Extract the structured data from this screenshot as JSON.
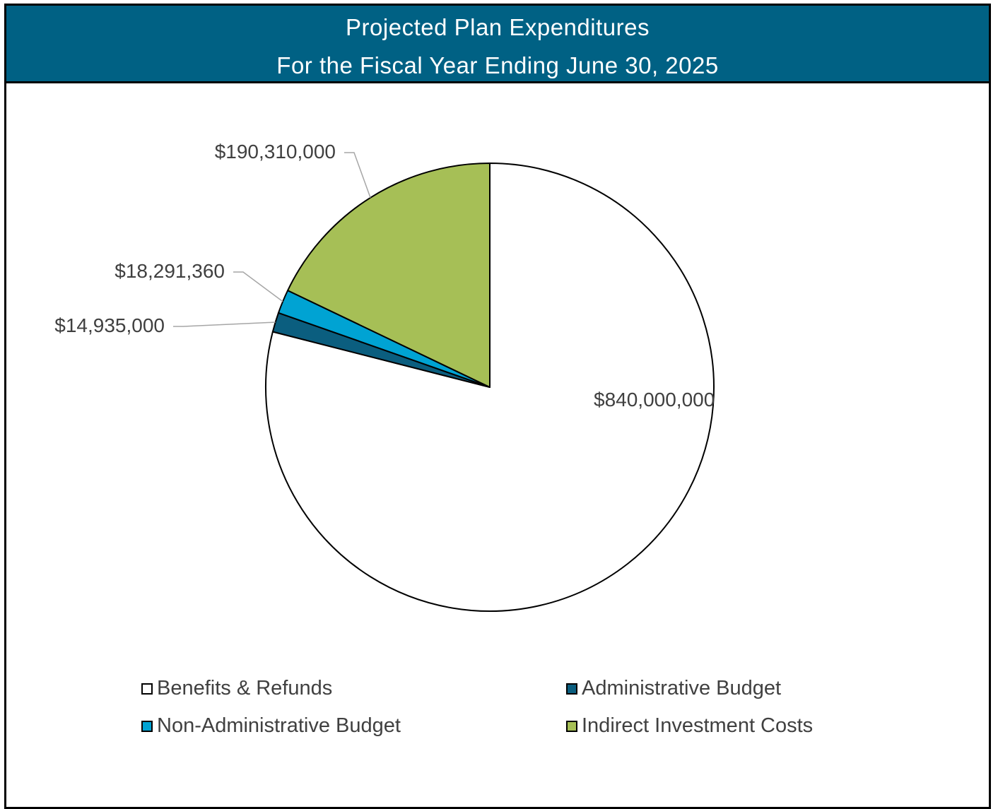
{
  "header": {
    "title_line1": "Projected Plan Expenditures",
    "title_line2": "For the Fiscal Year Ending June 30, 2025"
  },
  "chart_data": {
    "type": "pie",
    "title": "Projected Plan Expenditures For the Fiscal Year Ending June 30, 2025",
    "slices": [
      {
        "name": "Benefits & Refunds",
        "value": 840000000,
        "label": "$840,000,000",
        "color": "#ffffff"
      },
      {
        "name": "Administrative Budget",
        "value": 14935000,
        "label": "$14,935,000",
        "color": "#0b5e7f"
      },
      {
        "name": "Non-Administrative Budget",
        "value": 18291360,
        "label": "$18,291,360",
        "color": "#00a3d3"
      },
      {
        "name": "Indirect Investment Costs",
        "value": 190310000,
        "label": "$190,310,000",
        "color": "#a6bf56"
      }
    ],
    "legend_position": "bottom"
  },
  "legend": [
    {
      "label": "Benefits & Refunds",
      "color": "#ffffff"
    },
    {
      "label": "Administrative Budget",
      "color": "#0b5e7f"
    },
    {
      "label": "Non-Administrative Budget",
      "color": "#00a3d3"
    },
    {
      "label": "Indirect Investment Costs",
      "color": "#a6bf56"
    }
  ]
}
